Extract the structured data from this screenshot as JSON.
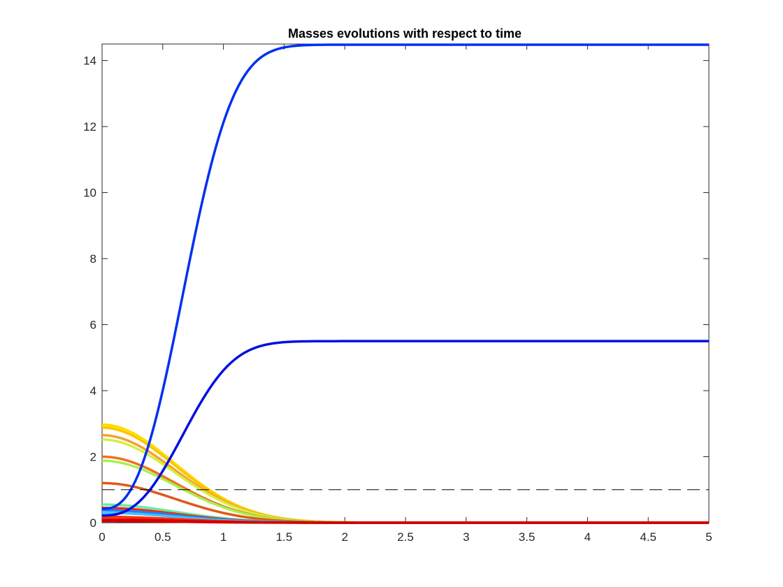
{
  "chart_data": {
    "type": "line",
    "title": "Masses evolutions with respect to time",
    "xlabel": "",
    "ylabel": "",
    "xlim": [
      0,
      5
    ],
    "ylim": [
      0,
      14.5
    ],
    "x_ticks": [
      0,
      0.5,
      1,
      1.5,
      2,
      2.5,
      3,
      3.5,
      4,
      4.5,
      5
    ],
    "x_tick_labels": [
      "0",
      "0.5",
      "1",
      "1.5",
      "2",
      "2.5",
      "3",
      "3.5",
      "4",
      "4.5",
      "5"
    ],
    "y_ticks": [
      0,
      2,
      4,
      6,
      8,
      10,
      12,
      14
    ],
    "y_tick_labels": [
      "0",
      "2",
      "4",
      "6",
      "8",
      "10",
      "12",
      "14"
    ],
    "grid": false,
    "box": true,
    "reference_line": {
      "y": 1,
      "style": "dashed",
      "color": "#000000"
    },
    "series": [
      {
        "color": "#ffd700",
        "kind": "decay",
        "y0": 2.97
      },
      {
        "color": "#ffe600",
        "kind": "decay",
        "y0": 2.92
      },
      {
        "color": "#ffc400",
        "kind": "decay",
        "y0": 2.88
      },
      {
        "color": "#f5a030",
        "kind": "decay",
        "y0": 2.65
      },
      {
        "color": "#d4f040",
        "kind": "decay",
        "y0": 2.52
      },
      {
        "color": "#f07020",
        "kind": "decay",
        "y0": 2.0
      },
      {
        "color": "#a8f050",
        "kind": "decay",
        "y0": 1.88
      },
      {
        "color": "#e05818",
        "kind": "decay",
        "y0": 1.2
      },
      {
        "color": "#60f0a0",
        "kind": "decay",
        "y0": 0.55
      },
      {
        "color": "#ff2800",
        "kind": "decay",
        "y0": 0.45
      },
      {
        "color": "#2080ff",
        "kind": "decay",
        "y0": 0.38
      },
      {
        "color": "#40c0ff",
        "kind": "decay",
        "y0": 0.3
      },
      {
        "color": "#ff3000",
        "kind": "decay",
        "y0": 0.18
      },
      {
        "color": "#e00000",
        "kind": "decay",
        "y0": 0.1
      },
      {
        "color": "#d00000",
        "kind": "decay",
        "y0": 0.05
      },
      {
        "color": "#0030f0",
        "kind": "growth",
        "y0": 0.42,
        "yinf": 14.48
      },
      {
        "color": "#0010e0",
        "kind": "growth",
        "y0": 0.22,
        "yinf": 5.5
      }
    ]
  }
}
